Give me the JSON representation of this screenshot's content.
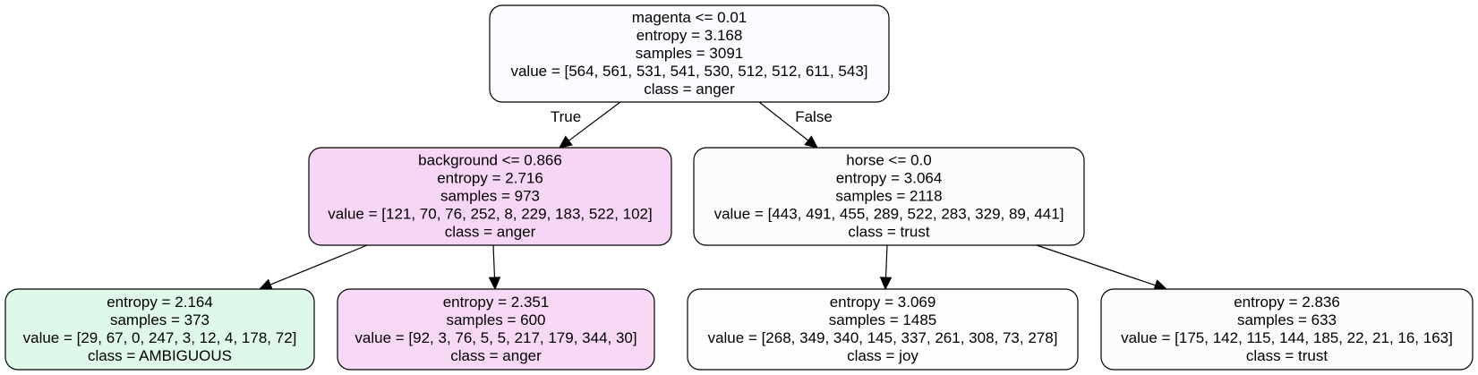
{
  "tree": {
    "nodes": [
      {
        "id": "root",
        "lines": [
          "magenta <= 0.01",
          "entropy = 3.168",
          "samples = 3091",
          "value = [564, 561, 531, 541, 530, 512, 512, 611, 543]",
          "class = anger"
        ],
        "fill": "#fdfaff"
      },
      {
        "id": "left",
        "lines": [
          "background <= 0.866",
          "entropy = 2.716",
          "samples = 973",
          "value = [121, 70, 76, 252, 8, 229, 183, 522, 102]",
          "class = anger"
        ],
        "fill": "#f7d6f5"
      },
      {
        "id": "right",
        "lines": [
          "horse <= 0.0",
          "entropy = 3.064",
          "samples = 2118",
          "value = [443, 491, 455, 289, 522, 283, 329, 89, 441]",
          "class = trust"
        ],
        "fill": "#fbfdfc"
      },
      {
        "id": "leaf-1",
        "lines": [
          "entropy = 2.164",
          "samples = 373",
          "value = [29, 67, 0, 247, 3, 12, 4, 178, 72]",
          "class = AMBIGUOUS"
        ],
        "fill": "#def8e9"
      },
      {
        "id": "leaf-2",
        "lines": [
          "entropy = 2.351",
          "samples = 600",
          "value = [92, 3, 76, 5, 5, 217, 179, 344, 30]",
          "class = anger"
        ],
        "fill": "#f8d8f5"
      },
      {
        "id": "leaf-3",
        "lines": [
          "entropy = 3.069",
          "samples = 1485",
          "value = [268, 349, 340, 145, 337, 261, 308, 73, 278]",
          "class = joy"
        ],
        "fill": "#fefefe"
      },
      {
        "id": "leaf-4",
        "lines": [
          "entropy = 2.836",
          "samples = 633",
          "value = [175, 142, 115, 144, 185, 22, 21, 16, 163]",
          "class = trust"
        ],
        "fill": "#fafdfc"
      }
    ],
    "edges": [
      {
        "from": "root",
        "to": "left",
        "label": "True"
      },
      {
        "from": "root",
        "to": "right",
        "label": "False"
      },
      {
        "from": "left",
        "to": "leaf-1",
        "label": ""
      },
      {
        "from": "left",
        "to": "leaf-2",
        "label": ""
      },
      {
        "from": "right",
        "to": "leaf-3",
        "label": ""
      },
      {
        "from": "right",
        "to": "leaf-4",
        "label": ""
      }
    ]
  }
}
